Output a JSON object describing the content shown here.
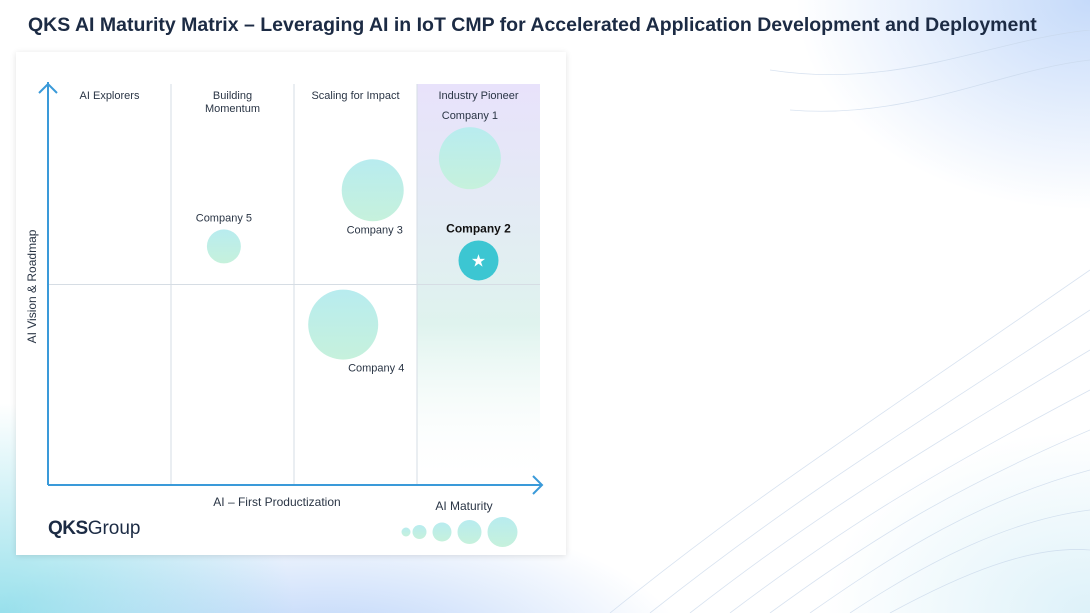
{
  "page": {
    "title": "QKS AI Maturity Matrix – Leveraging AI in IoT CMP for Accelerated Application Development and Deployment"
  },
  "brand": {
    "logo_bold": "QKS",
    "logo_light": "Group"
  },
  "chart_data": {
    "type": "scatter",
    "title": "QKS AI Maturity Matrix – Leveraging AI in IoT CMP for Accelerated Application Development and Deployment",
    "xlabel": "AI – First Productization",
    "ylabel": "AI Vision & Roadmap",
    "size_legend_label": "AI Maturity",
    "size_legend_steps": [
      1,
      2,
      3,
      4,
      5
    ],
    "xlim": [
      0,
      4
    ],
    "ylim": [
      0,
      2
    ],
    "grid": true,
    "quadrants": [
      "AI Explorers",
      "Building Momentum",
      "Scaling for Impact",
      "Industry Pioneer"
    ],
    "highlight_quadrant": "Industry Pioneer",
    "points": [
      {
        "name": "Company 1",
        "x": 3.43,
        "y": 1.63,
        "size": 4,
        "highlight": false,
        "label_pos": "above"
      },
      {
        "name": "Company 2",
        "x": 3.5,
        "y": 1.12,
        "size": 3,
        "highlight": true,
        "label_pos": "above"
      },
      {
        "name": "Company 3",
        "x": 2.64,
        "y": 1.47,
        "size": 4,
        "highlight": false,
        "label_pos": "below"
      },
      {
        "name": "Company 4",
        "x": 2.4,
        "y": 0.8,
        "size": 5,
        "highlight": false,
        "label_pos": "below"
      },
      {
        "name": "Company 5",
        "x": 1.43,
        "y": 1.19,
        "size": 2,
        "highlight": false,
        "label_pos": "above"
      }
    ]
  },
  "colors": {
    "axis": "#3a9ad9",
    "grid": "#d6dde4",
    "bubble_light": "#b8ecef",
    "bubble_dark": "#c6f1dc",
    "star_bubble": "#3cc6d2",
    "pioneer_top": "#e8e2fb",
    "pioneer_bottom": "#dff3ee",
    "title_text": "#1c2b44",
    "label_text": "#2a3545"
  }
}
